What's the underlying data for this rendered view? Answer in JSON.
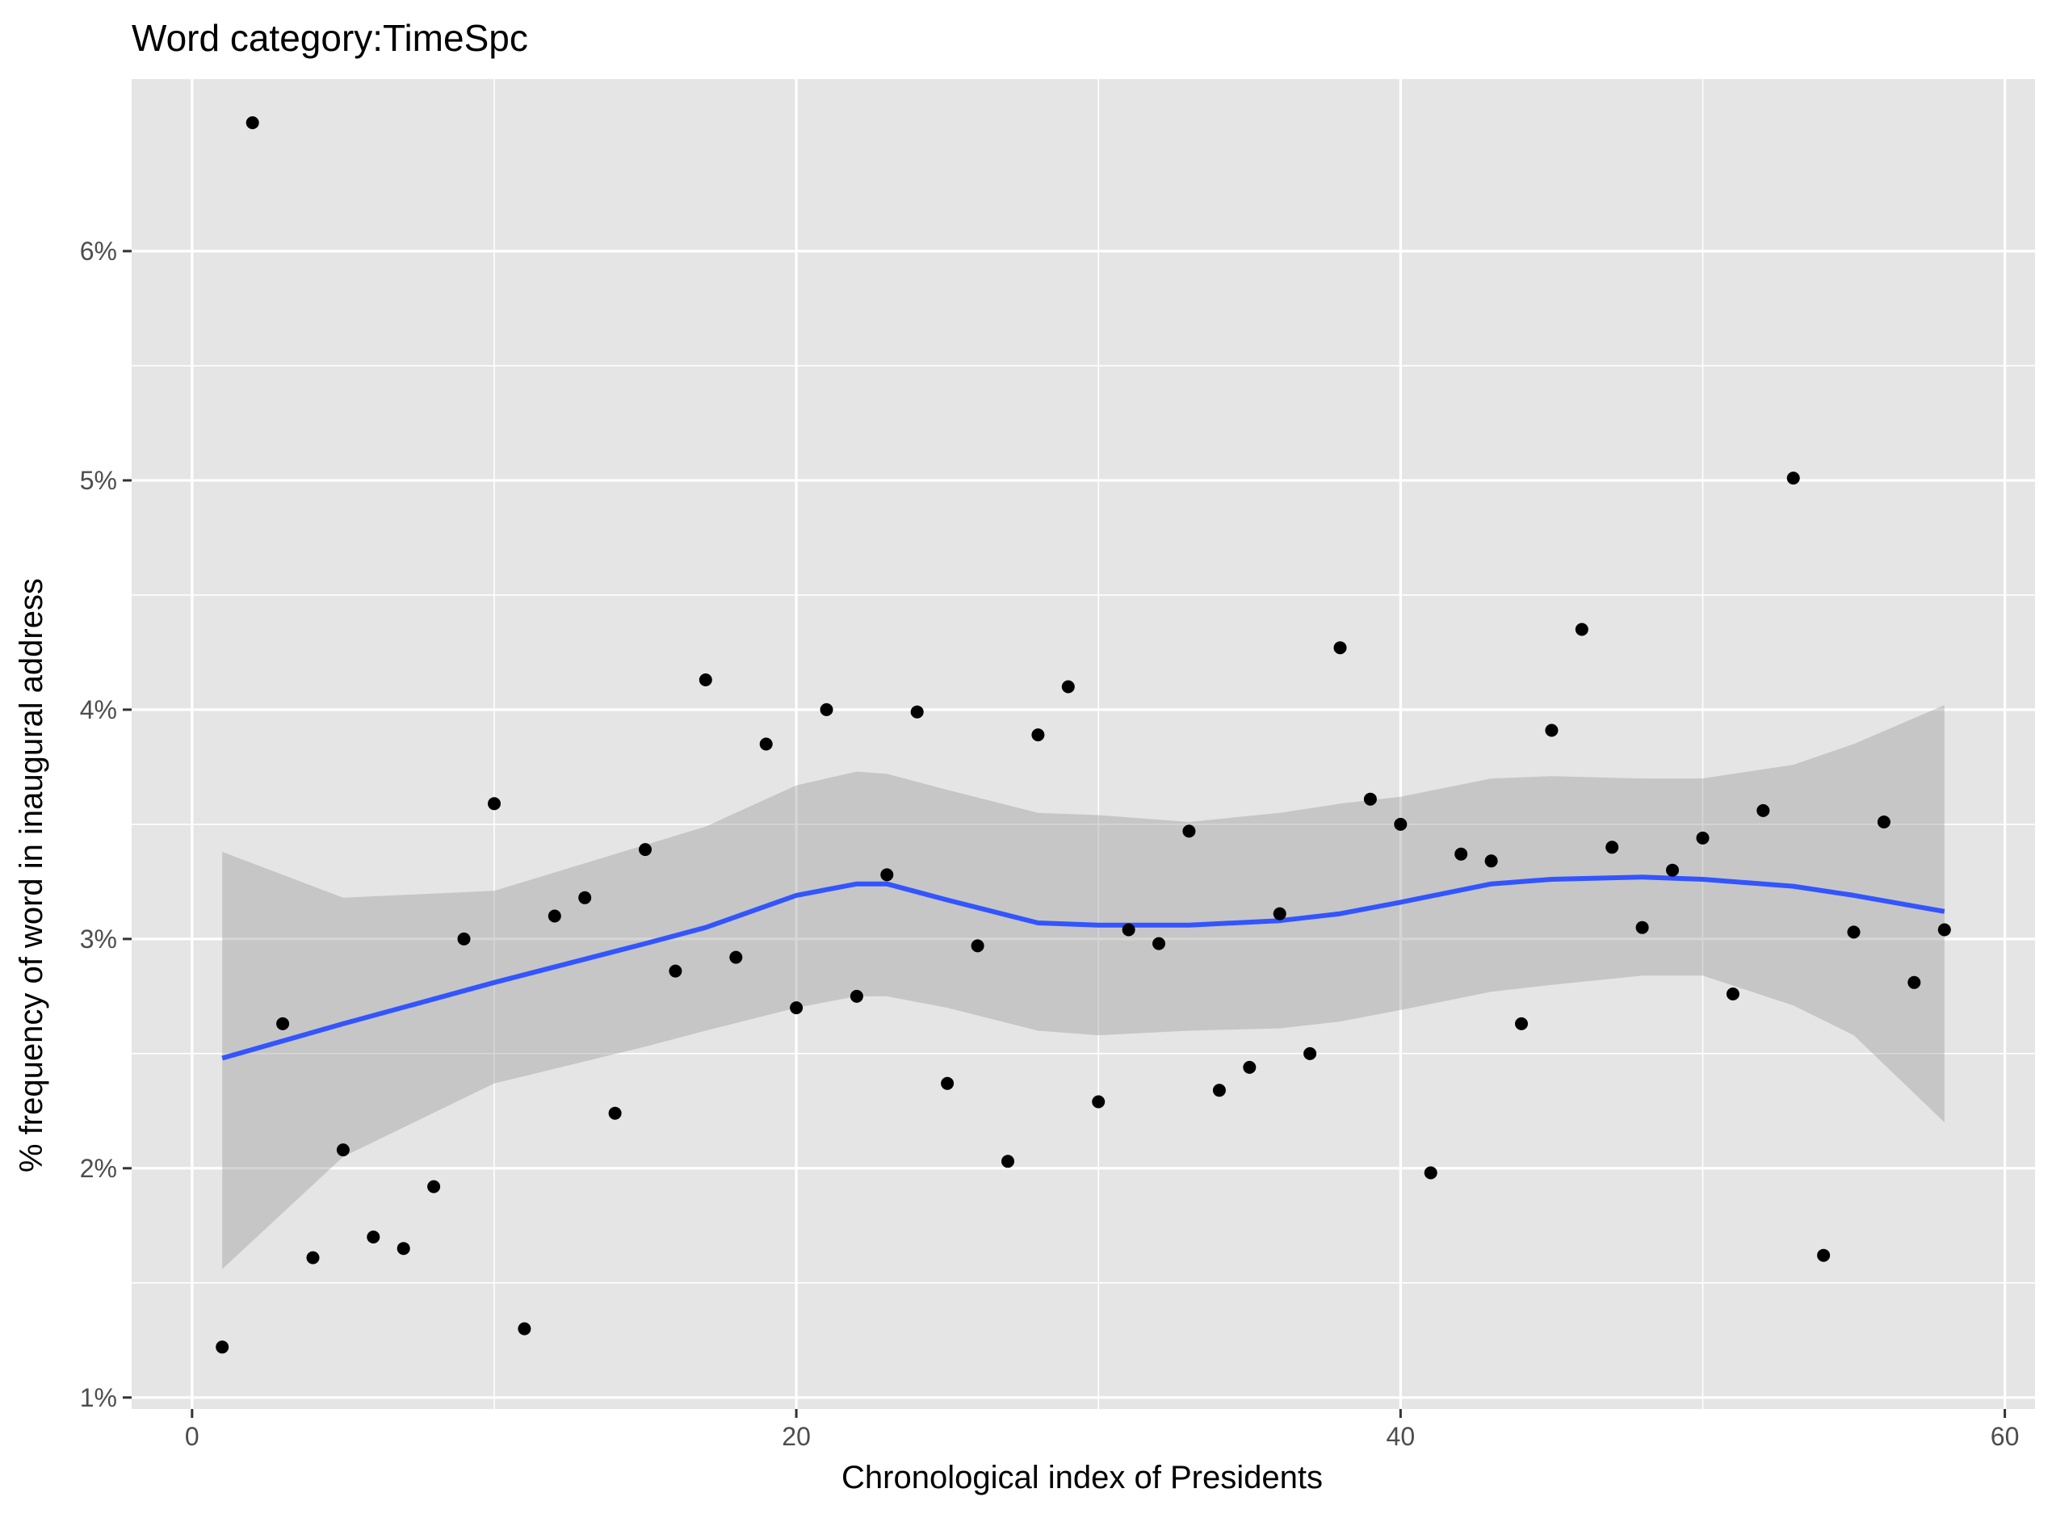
{
  "chart_data": {
    "type": "scatter",
    "title": "Word category:TimeSpc",
    "xlabel": "Chronological index of Presidents",
    "ylabel": "% frequency of word in inaugural address",
    "xlim": [
      -2,
      61
    ],
    "ylim": [
      0.0095,
      0.0675
    ],
    "x_ticks": [
      0,
      20,
      40,
      60
    ],
    "x_tick_labels": [
      "0",
      "20",
      "40",
      "60"
    ],
    "y_ticks": [
      0.01,
      0.02,
      0.03,
      0.04,
      0.05,
      0.06
    ],
    "y_tick_labels": [
      "1%",
      "2%",
      "3%",
      "4%",
      "5%",
      "6%"
    ],
    "grid": true,
    "colors": {
      "panel_background": "#e5e5e5",
      "grid": "#ffffff",
      "points": "#000000",
      "smooth_line": "#3355ff",
      "confidence_band": "#999999"
    },
    "points": [
      [
        1,
        0.0122
      ],
      [
        2,
        0.0656
      ],
      [
        3,
        0.0263
      ],
      [
        4,
        0.0161
      ],
      [
        5,
        0.0208
      ],
      [
        6,
        0.017
      ],
      [
        7,
        0.0165
      ],
      [
        8,
        0.0192
      ],
      [
        9,
        0.03
      ],
      [
        10,
        0.0359
      ],
      [
        11,
        0.013
      ],
      [
        12,
        0.031
      ],
      [
        13,
        0.0318
      ],
      [
        14,
        0.0224
      ],
      [
        15,
        0.0339
      ],
      [
        16,
        0.0286
      ],
      [
        17,
        0.0413
      ],
      [
        18,
        0.0292
      ],
      [
        19,
        0.0385
      ],
      [
        20,
        0.027
      ],
      [
        21,
        0.04
      ],
      [
        22,
        0.0275
      ],
      [
        23,
        0.0328
      ],
      [
        24,
        0.0399
      ],
      [
        25,
        0.0237
      ],
      [
        26,
        0.0297
      ],
      [
        27,
        0.0203
      ],
      [
        28,
        0.0389
      ],
      [
        29,
        0.041
      ],
      [
        30,
        0.0229
      ],
      [
        31,
        0.0304
      ],
      [
        32,
        0.0298
      ],
      [
        33,
        0.0347
      ],
      [
        34,
        0.0234
      ],
      [
        35,
        0.0244
      ],
      [
        36,
        0.0311
      ],
      [
        37,
        0.025
      ],
      [
        38,
        0.0427
      ],
      [
        39,
        0.0361
      ],
      [
        40,
        0.035
      ],
      [
        41,
        0.0198
      ],
      [
        42,
        0.0337
      ],
      [
        43,
        0.0334
      ],
      [
        44,
        0.0263
      ],
      [
        45,
        0.0391
      ],
      [
        46,
        0.0435
      ],
      [
        47,
        0.034
      ],
      [
        48,
        0.0305
      ],
      [
        49,
        0.033
      ],
      [
        50,
        0.0344
      ],
      [
        51,
        0.0276
      ],
      [
        52,
        0.0356
      ],
      [
        53,
        0.0501
      ],
      [
        54,
        0.0162
      ],
      [
        55,
        0.0303
      ],
      [
        56,
        0.0351
      ],
      [
        57,
        0.0281
      ],
      [
        58,
        0.0304
      ]
    ],
    "smooth": {
      "x": [
        1,
        5,
        10,
        15,
        17,
        20,
        22,
        23,
        25,
        28,
        30,
        33,
        36,
        38,
        40,
        43,
        45,
        48,
        50,
        53,
        55,
        58
      ],
      "y": [
        0.0248,
        0.0263,
        0.0281,
        0.0298,
        0.0305,
        0.0319,
        0.0324,
        0.0324,
        0.0317,
        0.0307,
        0.0306,
        0.0306,
        0.0308,
        0.0311,
        0.0316,
        0.0324,
        0.0326,
        0.0327,
        0.0326,
        0.0323,
        0.0319,
        0.0312
      ],
      "lower": [
        0.0156,
        0.0205,
        0.0237,
        0.0253,
        0.026,
        0.027,
        0.0275,
        0.0275,
        0.027,
        0.026,
        0.0258,
        0.026,
        0.0261,
        0.0264,
        0.0269,
        0.0277,
        0.028,
        0.0284,
        0.0284,
        0.0271,
        0.0258,
        0.022
      ],
      "upper": [
        0.0338,
        0.0318,
        0.0321,
        0.0341,
        0.0349,
        0.0367,
        0.0373,
        0.0372,
        0.0365,
        0.0355,
        0.0354,
        0.0351,
        0.0355,
        0.0359,
        0.0362,
        0.037,
        0.0371,
        0.037,
        0.037,
        0.0376,
        0.0385,
        0.0402
      ]
    }
  }
}
